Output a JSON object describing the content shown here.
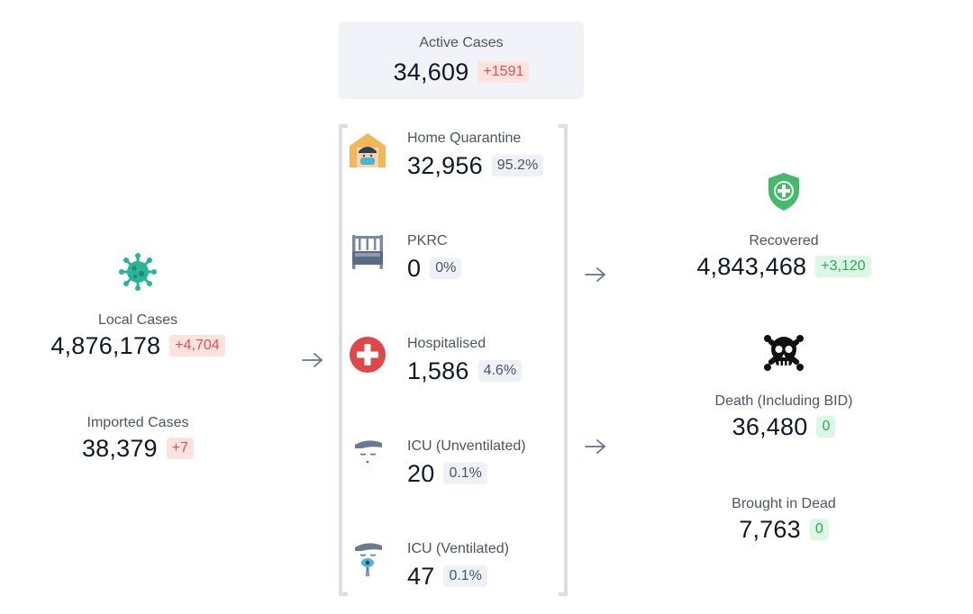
{
  "active": {
    "label": "Active Cases",
    "value": "34,609",
    "delta": "+1591"
  },
  "local": {
    "label": "Local Cases",
    "value": "4,876,178",
    "delta": "+4,704",
    "icon": "virus-icon"
  },
  "imported": {
    "label": "Imported Cases",
    "value": "38,379",
    "delta": "+7"
  },
  "breakdown": [
    {
      "label": "Home Quarantine",
      "value": "32,956",
      "percent": "95.2%",
      "icon": "home-quarantine-icon"
    },
    {
      "label": "PKRC",
      "value": "0",
      "percent": "0%",
      "icon": "bed-icon"
    },
    {
      "label": "Hospitalised",
      "value": "1,586",
      "percent": "4.6%",
      "icon": "hospital-cross-icon"
    },
    {
      "label": "ICU (Unventilated)",
      "value": "20",
      "percent": "0.1%",
      "icon": "icu-unventilated-icon"
    },
    {
      "label": "ICU (Ventilated)",
      "value": "47",
      "percent": "0.1%",
      "icon": "icu-ventilated-icon"
    }
  ],
  "recovered": {
    "label": "Recovered",
    "value": "4,843,468",
    "delta": "+3,120",
    "icon": "shield-plus-icon"
  },
  "death": {
    "label": "Death (Including BID)",
    "value": "36,480",
    "delta": "0",
    "icon": "skull-crossbones-icon"
  },
  "bid": {
    "label": "Brought in Dead",
    "value": "7,763",
    "delta": "0"
  },
  "colors": {
    "red": "#e05252",
    "green": "#2eaa55",
    "grey_badge": "#eef1f6",
    "card": "#f1f3f8"
  }
}
